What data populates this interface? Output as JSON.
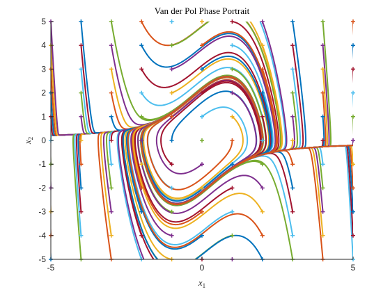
{
  "chart_data": {
    "type": "line",
    "title": "Van der Pol Phase Portrait",
    "xlabel": {
      "symbol": "x",
      "subscript": "1"
    },
    "ylabel": {
      "symbol": "x",
      "subscript": "2"
    },
    "xlim": [
      -5,
      5
    ],
    "ylim": [
      -5,
      5
    ],
    "x_ticks": [
      -5,
      0,
      5
    ],
    "y_ticks": [
      -5,
      -4,
      -3,
      -2,
      -1,
      0,
      1,
      2,
      3,
      4,
      5
    ],
    "x_tick_labels": [
      "-5",
      "0",
      "5"
    ],
    "y_tick_labels": [
      "-5",
      "-4",
      "-3",
      "-2",
      "-1",
      "0",
      "1",
      "2",
      "3",
      "4",
      "5"
    ],
    "grid": false,
    "box": false,
    "mu": 1,
    "initial_conditions": {
      "x1": [
        -5,
        -4,
        -3,
        -2,
        -1,
        0,
        1,
        2,
        3,
        4,
        5
      ],
      "x2": [
        -5,
        -4,
        -3,
        -2,
        -1,
        0,
        1,
        2,
        3,
        4,
        5
      ],
      "marker": "+"
    },
    "series_colors": [
      "#0072BD",
      "#D95319",
      "#EDB120",
      "#7E2F8E",
      "#77AC30",
      "#4DBEEE",
      "#A2142F"
    ]
  }
}
